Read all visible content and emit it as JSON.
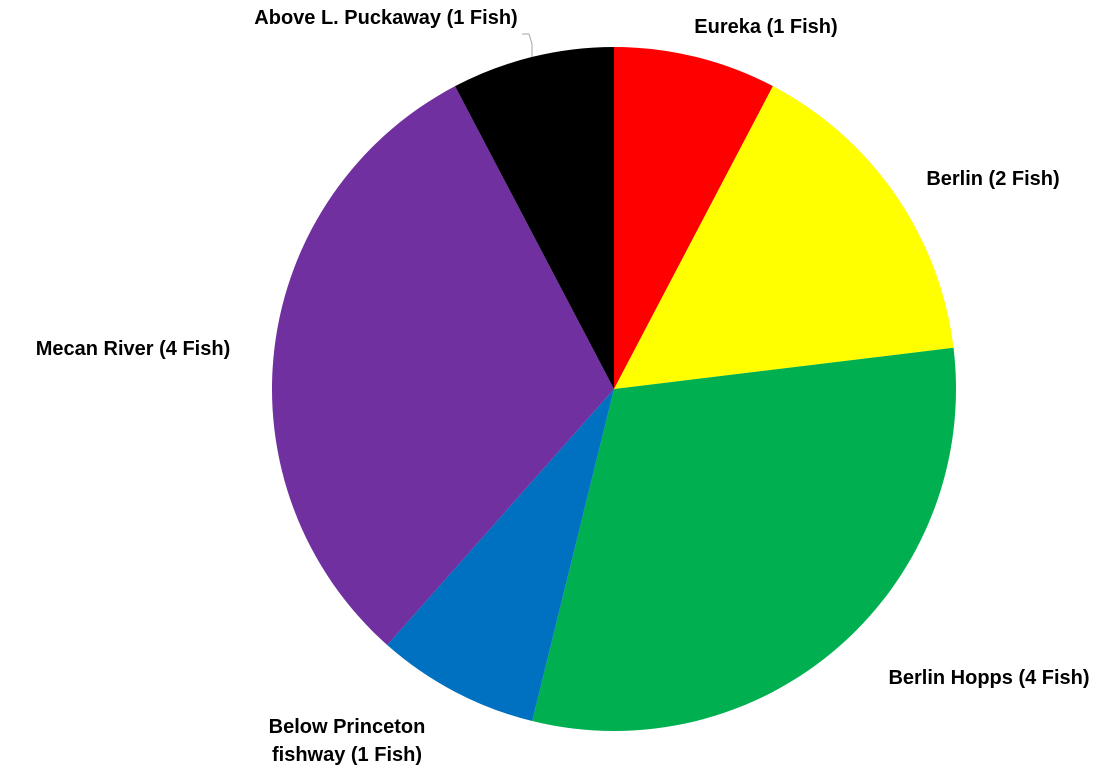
{
  "chart_data": {
    "type": "pie",
    "title": "",
    "slices": [
      {
        "label": "Eureka (1 Fish)",
        "value": 1,
        "color": "#FF0000"
      },
      {
        "label": "Berlin (2 Fish)",
        "value": 2,
        "color": "#FFFF00"
      },
      {
        "label": "Berlin Hopps (4 Fish)",
        "value": 4,
        "color": "#00B050"
      },
      {
        "label": "Below Princeton fishway (1 Fish)",
        "label_lines": [
          "Below Princeton",
          "fishway (1 Fish)"
        ],
        "value": 1,
        "color": "#0070C0"
      },
      {
        "label": "Mecan River (4 Fish)",
        "value": 4,
        "color": "#7030A0"
      },
      {
        "label": "Above L. Puckaway (1 Fish)",
        "value": 1,
        "color": "#000000"
      }
    ],
    "start_angle": "12 o'clock",
    "direction": "clockwise",
    "legend": "none",
    "data_labels": "outside"
  }
}
